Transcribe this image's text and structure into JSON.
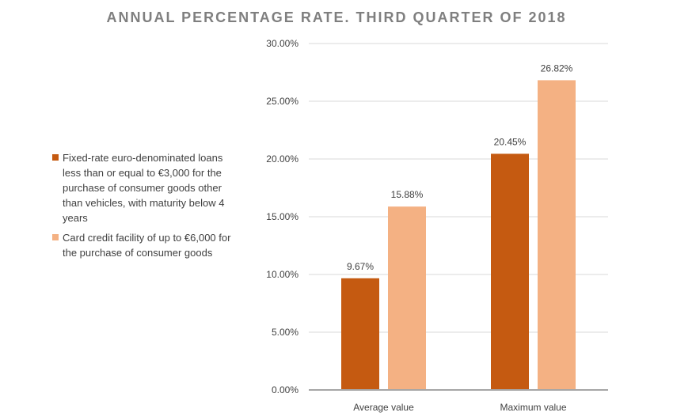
{
  "chart_data": {
    "type": "bar",
    "title": "ANNUAL PERCENTAGE RATE. THIRD QUARTER OF 2018",
    "xlabel": "",
    "ylabel": "",
    "ylim": [
      0,
      30
    ],
    "y_ticks": [
      "0.00%",
      "5.00%",
      "10.00%",
      "15.00%",
      "20.00%",
      "25.00%",
      "30.00%"
    ],
    "categories": [
      "Average value",
      "Maximum value"
    ],
    "series": [
      {
        "name": "Fixed-rate euro-denominated loans less than or equal to €3,000 for the purchase of consumer goods other than vehicles, with maturity below 4 years",
        "values": [
          9.67,
          20.45
        ],
        "labels": [
          "9.67%",
          "20.45%"
        ],
        "color": "#c55a11"
      },
      {
        "name": "Card credit facility of up to €6,000 for the purchase of consumer goods",
        "values": [
          15.88,
          26.82
        ],
        "labels": [
          "15.88%",
          "26.82%"
        ],
        "color": "#f4b183"
      }
    ],
    "grid": true,
    "legend_position": "left"
  }
}
